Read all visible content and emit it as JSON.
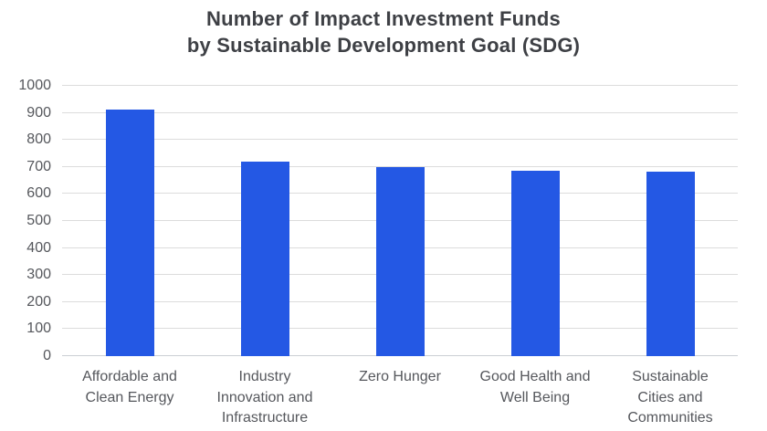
{
  "chart_data": {
    "type": "bar",
    "title": "Number of Impact Investment Funds\nby Sustainable Development Goal (SDG)",
    "categories": [
      "Affordable and\nClean Energy",
      "Industry\nInnovation and\nInfrastructure",
      "Zero Hunger",
      "Good Health and\nWell Being",
      "Sustainable\nCities and\nCommunities"
    ],
    "values": [
      913,
      720,
      700,
      687,
      683
    ],
    "xlabel": "",
    "ylabel": "",
    "ylim": [
      0,
      1000
    ],
    "yticks": [
      0,
      100,
      200,
      300,
      400,
      500,
      600,
      700,
      800,
      900,
      1000
    ],
    "grid": true,
    "legend_position": "none",
    "colors": {
      "bar": "#2458E4",
      "gridline": "#DCDCDC",
      "baseline": "#CBCFD4",
      "title": "#3E4045",
      "tick_label": "#55575C",
      "background": "#FFFFFF"
    }
  }
}
